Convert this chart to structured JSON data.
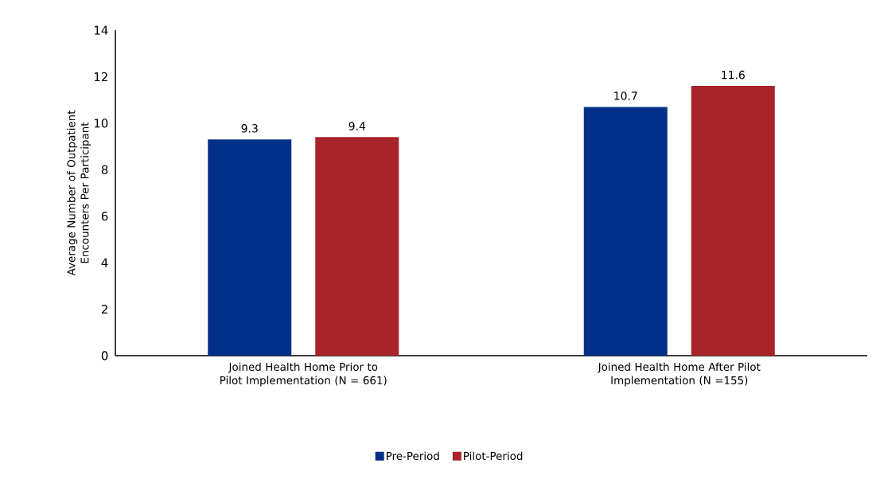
{
  "chart_data": {
    "type": "bar",
    "ylabel": "Average Number of Outpatient Encounters Per Participant",
    "categories": [
      "Joined Health Home Prior to Pilot Implementation (N = 661)",
      "Joined Health Home After Pilot Implementation (N =155)"
    ],
    "series": [
      {
        "name": "Pre-Period",
        "color": "#003087",
        "values": [
          9.3,
          10.7
        ]
      },
      {
        "name": "Pilot-Period",
        "color": "#a8232a",
        "values": [
          9.4,
          11.6
        ]
      }
    ],
    "ylim": [
      0,
      14
    ],
    "yticks": [
      0,
      2,
      4,
      6,
      8,
      10,
      12,
      14
    ],
    "data_labels": true,
    "grid": false,
    "legend": "bottom"
  }
}
